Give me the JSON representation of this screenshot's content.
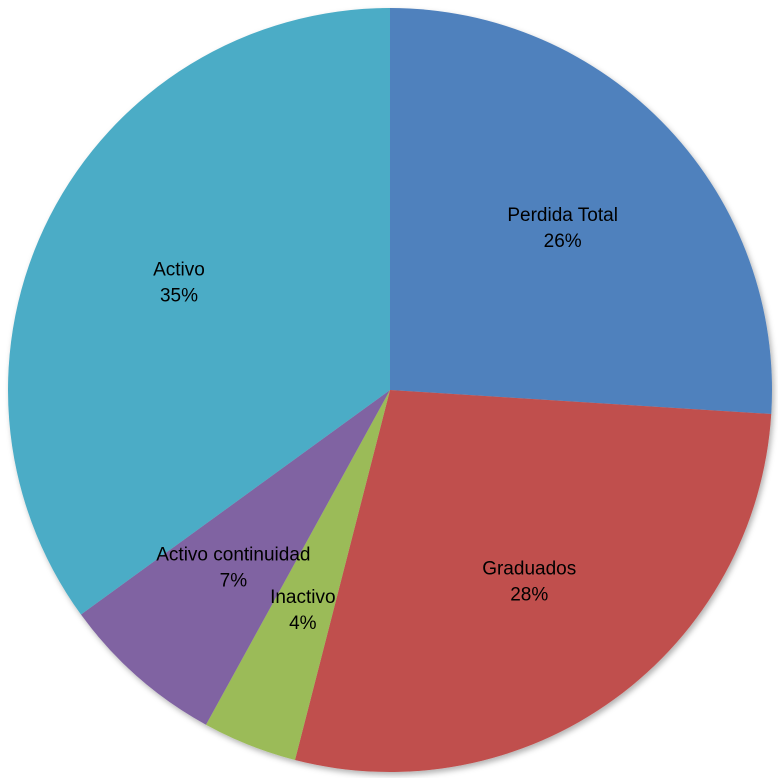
{
  "chart_data": {
    "type": "pie",
    "categories": [
      "Perdida Total",
      "Graduados",
      "Inactivo",
      "Activo continuidad",
      "Activo"
    ],
    "values": [
      26,
      28,
      4,
      7,
      35
    ],
    "value_labels": [
      "26%",
      "28%",
      "4%",
      "7%",
      "35%"
    ],
    "colors": [
      "#4f81bd",
      "#c0504d",
      "#9bbb59",
      "#8064a2",
      "#4bacc6"
    ]
  }
}
